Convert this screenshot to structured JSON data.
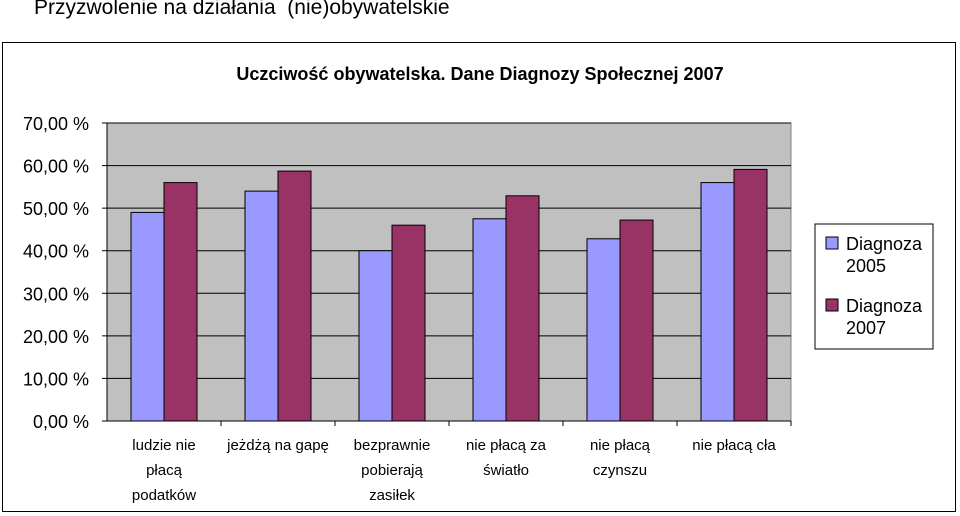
{
  "page_title": "Przyzwolenie na działania  (nie)obywatelskie",
  "chart_data": {
    "type": "bar",
    "title": "Uczciwość obywatelska. Dane Diagnozy Społecznej 2007",
    "xlabel": "",
    "ylabel": "",
    "ylim": [
      0,
      70
    ],
    "grid": true,
    "legend_position": "right",
    "y_ticks": [
      "0,00 %",
      "10,00 %",
      "20,00 %",
      "30,00 %",
      "40,00 %",
      "50,00 %",
      "60,00 %",
      "70,00 %"
    ],
    "y_tick_values": [
      0,
      10,
      20,
      30,
      40,
      50,
      60,
      70
    ],
    "categories": [
      [
        "ludzie nie",
        "płacą",
        "podatków"
      ],
      [
        "jeżdżą na gapę"
      ],
      [
        "bezprawnie",
        "pobierają",
        "zasiłek"
      ],
      [
        "nie płacą za",
        "światło"
      ],
      [
        "nie płacą",
        "czynszu"
      ],
      [
        "nie płacą cła"
      ]
    ],
    "series": [
      {
        "name": "Diagnoza 2005",
        "legend_lines": [
          "Diagnoza",
          "2005"
        ],
        "color": "#9999ff",
        "values": [
          49,
          54,
          40,
          47.5,
          42.8,
          56
        ]
      },
      {
        "name": "Diagnoza 2007",
        "legend_lines": [
          "Diagnoza",
          "2007"
        ],
        "color": "#993366",
        "values": [
          56,
          58.7,
          46,
          52.9,
          47.2,
          59.1
        ]
      }
    ],
    "plot_background": "#c0c0c0"
  }
}
